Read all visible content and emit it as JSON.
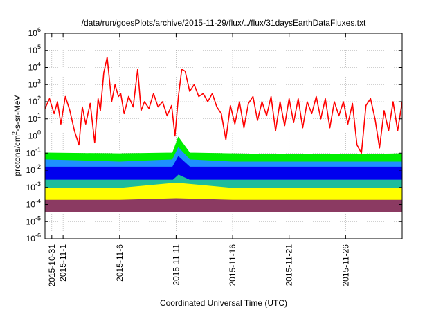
{
  "chart_data": {
    "type": "line",
    "title": "/data/run/goesPlots/archive/2015-11-29/flux/../flux/31daysEarthDataFluxes.txt",
    "xlabel": "Coordinated Universal Time (UTC)",
    "ylabel": {
      "base": "protons/cm",
      "sup": "2",
      "rest": "-s-sr-MeV"
    },
    "yscale": "log",
    "ylim": [
      1e-06,
      1000000.0
    ],
    "y_ticks": [
      {
        "base": "10",
        "exp": "6"
      },
      {
        "base": "10",
        "exp": "5"
      },
      {
        "base": "10",
        "exp": "4"
      },
      {
        "base": "10",
        "exp": "3"
      },
      {
        "base": "10",
        "exp": "2"
      },
      {
        "base": "10",
        "exp": "1"
      },
      {
        "base": "10",
        "exp": "0"
      },
      {
        "base": "10",
        "exp": "-1"
      },
      {
        "base": "10",
        "exp": "-2"
      },
      {
        "base": "10",
        "exp": "-3"
      },
      {
        "base": "10",
        "exp": "-4"
      },
      {
        "base": "10",
        "exp": "-5"
      },
      {
        "base": "10",
        "exp": "-6"
      }
    ],
    "x_days": [
      -1.6,
      30
    ],
    "x_ticks": [
      {
        "label": "2015-10-31",
        "day": -1
      },
      {
        "label": "2015-11-1",
        "day": 0
      },
      {
        "label": "2015-11-6",
        "day": 5
      },
      {
        "label": "2015-11-11",
        "day": 10
      },
      {
        "label": "2015-11-16",
        "day": 15
      },
      {
        "label": "2015-11-21",
        "day": 20
      },
      {
        "label": "2015-11-26",
        "day": 25
      }
    ],
    "grid": true,
    "legend": "none",
    "series": [
      {
        "color": "#8b3a62",
        "kind": "band",
        "x": [
          -1.6,
          5,
          10,
          15,
          20,
          25,
          30
        ],
        "low": [
          4e-05,
          4e-05,
          4e-05,
          4e-05,
          4e-05,
          4e-05,
          4e-05
        ],
        "high": [
          0.00025,
          0.00025,
          0.0003,
          0.00025,
          0.00025,
          0.00025,
          0.00025
        ]
      },
      {
        "color": "#ffff00",
        "kind": "band",
        "x": [
          -1.6,
          5,
          10,
          15,
          20,
          25,
          30
        ],
        "low": [
          0.0002,
          0.0002,
          0.00025,
          0.0002,
          0.0002,
          0.0002,
          0.0002
        ],
        "high": [
          0.0015,
          0.0015,
          0.0025,
          0.0015,
          0.0015,
          0.0015,
          0.0015
        ]
      },
      {
        "color": "#1ebc9c",
        "kind": "band",
        "x": [
          -1.6,
          5,
          10,
          15,
          20,
          25,
          30
        ],
        "low": [
          0.001,
          0.001,
          0.002,
          0.001,
          0.001,
          0.001,
          0.001
        ],
        "high": [
          0.01,
          0.01,
          0.02,
          0.008,
          0.008,
          0.008,
          0.008
        ]
      },
      {
        "color": "#00ee00",
        "kind": "band",
        "x": [
          -1.6,
          5,
          9.7,
          10.2,
          11.2,
          15,
          20,
          25,
          30
        ],
        "low": [
          0.01,
          0.01,
          0.01,
          0.03,
          0.01,
          0.01,
          0.01,
          0.01,
          0.01
        ],
        "high": [
          0.1,
          0.09,
          0.1,
          0.8,
          0.1,
          0.09,
          0.08,
          0.08,
          0.09
        ]
      },
      {
        "color": "#1e90ff",
        "kind": "band",
        "x": [
          -1.6,
          5,
          9.7,
          10.2,
          11.2,
          15,
          20,
          25,
          30
        ],
        "low": [
          0.003,
          0.003,
          0.003,
          0.01,
          0.003,
          0.003,
          0.003,
          0.003,
          0.003
        ],
        "high": [
          0.04,
          0.03,
          0.04,
          0.2,
          0.04,
          0.03,
          0.03,
          0.03,
          0.03
        ]
      },
      {
        "color": "#0000ee",
        "kind": "band",
        "x": [
          -1.6,
          5,
          9.7,
          10.2,
          11.2,
          15,
          20,
          25,
          30
        ],
        "low": [
          0.003,
          0.003,
          0.003,
          0.006,
          0.003,
          0.003,
          0.003,
          0.003,
          0.003
        ],
        "high": [
          0.015,
          0.015,
          0.015,
          0.06,
          0.015,
          0.015,
          0.015,
          0.015,
          0.015
        ]
      },
      {
        "color": "#ff0000",
        "kind": "line",
        "x": [
          -1.6,
          -1.2,
          -0.8,
          -0.5,
          -0.2,
          0.2,
          0.6,
          1.0,
          1.4,
          1.7,
          2.0,
          2.4,
          2.8,
          3.1,
          3.3,
          3.6,
          3.9,
          4.3,
          4.6,
          4.9,
          5.1,
          5.4,
          5.8,
          6.2,
          6.6,
          6.9,
          7.2,
          7.6,
          8.0,
          8.4,
          8.8,
          9.2,
          9.6,
          9.9,
          10.2,
          10.5,
          10.8,
          11.2,
          11.6,
          12.0,
          12.4,
          12.8,
          13.2,
          13.6,
          14.0,
          14.4,
          14.8,
          15.2,
          15.6,
          16.0,
          16.4,
          16.8,
          17.2,
          17.6,
          18.0,
          18.4,
          18.8,
          19.2,
          19.6,
          20.0,
          20.4,
          20.8,
          21.2,
          21.6,
          22.0,
          22.4,
          22.8,
          23.2,
          23.6,
          24.0,
          24.4,
          24.8,
          25.2,
          25.6,
          26.0,
          26.4,
          26.8,
          27.2,
          27.6,
          28.0,
          28.4,
          28.8,
          29.2,
          29.6,
          30.0
        ],
        "values": [
          40,
          150,
          20,
          100,
          5,
          200,
          30,
          2,
          0.3,
          50,
          5,
          80,
          0.4,
          150,
          30,
          5000,
          40000,
          100,
          1000,
          200,
          300,
          20,
          200,
          50,
          8000,
          30,
          100,
          40,
          300,
          50,
          100,
          15,
          60,
          1,
          200,
          8000,
          6000,
          400,
          1000,
          200,
          300,
          100,
          300,
          50,
          20,
          0.6,
          60,
          5,
          100,
          3,
          80,
          200,
          8,
          100,
          15,
          200,
          2,
          100,
          4,
          150,
          6,
          150,
          3,
          100,
          20,
          200,
          10,
          150,
          3,
          100,
          15,
          100,
          5,
          80,
          0.3,
          0.1,
          60,
          150,
          10,
          0.2,
          30,
          2,
          100,
          2,
          100
        ]
      }
    ]
  }
}
